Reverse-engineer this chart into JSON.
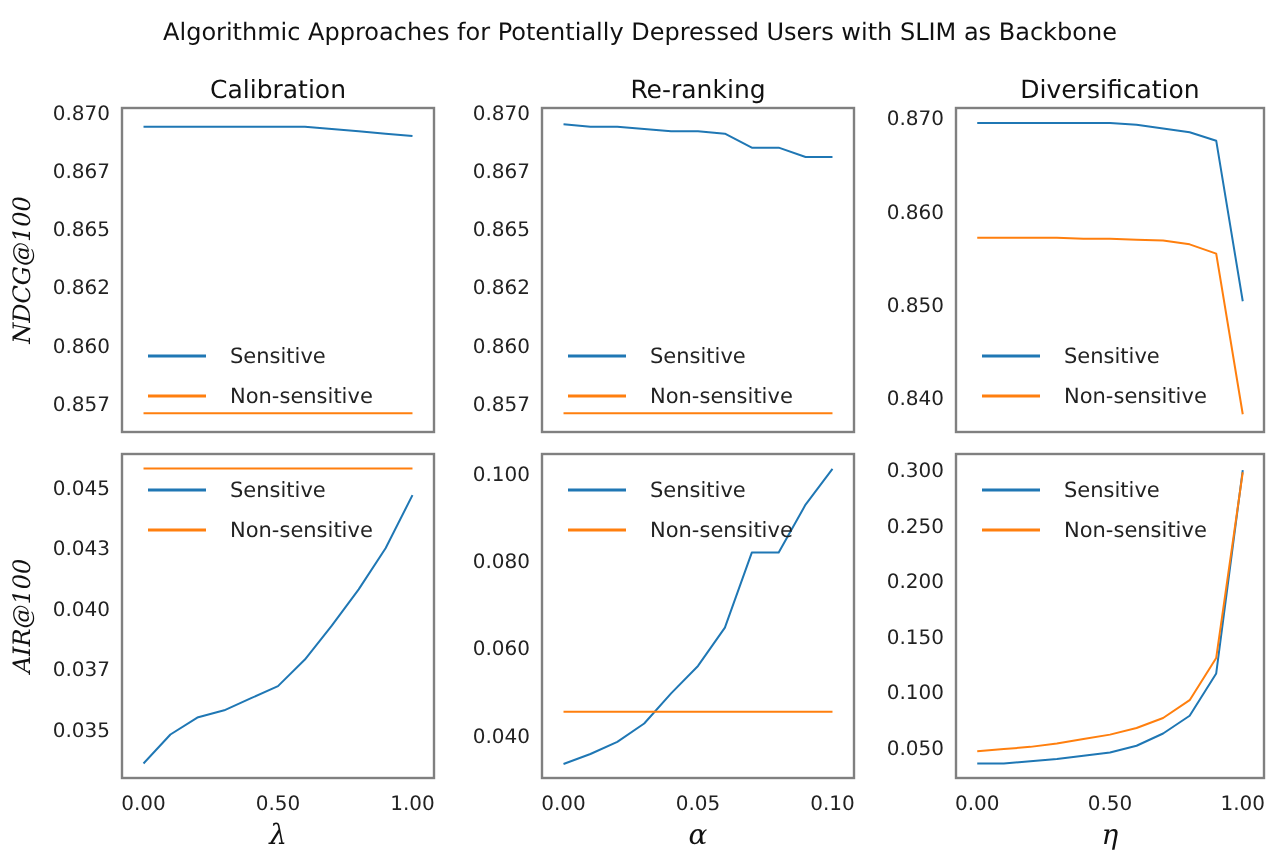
{
  "chart_data": [
    {
      "type": "line",
      "title": "Calibration",
      "ylabel": "NDCG@100",
      "annotations": [
        "Algorithmic Approaches for Potentially Depressed Users with SLIM as Backbone"
      ],
      "x": [
        0,
        0.1,
        0.2,
        0.3,
        0.4,
        0.5,
        0.6,
        0.7,
        0.8,
        0.9,
        1.0
      ],
      "xlim": [
        -0.08,
        1.08
      ],
      "ylim": [
        0.8563,
        0.8702
      ],
      "yticks": [
        {
          "value": 0.87,
          "label": "0.870"
        },
        {
          "value": 0.8675,
          "label": "0.867"
        },
        0.865,
        {
          "value": 0.8625,
          "label": "0.862"
        },
        {
          "value": 0.86,
          "label": "0.860"
        },
        {
          "value": 0.8575,
          "label": "0.857"
        }
      ],
      "tick_labels": "y",
      "legend": "bottom left",
      "series": [
        {
          "name": "Sensitive",
          "color": "#1f77b4",
          "values": [
            0.8694,
            0.8694,
            0.8694,
            0.8694,
            0.8694,
            0.8694,
            0.8694,
            0.8693,
            0.8692,
            0.8691,
            0.869
          ]
        },
        {
          "name": "Non-sensitive",
          "color": "#ff7f0e",
          "values": [
            0.8571,
            0.8571,
            0.8571,
            0.8571,
            0.8571,
            0.8571,
            0.8571,
            0.8571,
            0.8571,
            0.8571,
            0.8571
          ]
        }
      ]
    },
    {
      "type": "line",
      "title": "Re-ranking",
      "x": [
        0,
        0.01,
        0.02,
        0.03,
        0.04,
        0.05,
        0.06,
        0.07,
        0.08,
        0.09,
        0.1
      ],
      "xlim": [
        -0.008,
        0.108
      ],
      "ylim": [
        0.8563,
        0.8702
      ],
      "yticks": [
        {
          "value": 0.87,
          "label": "0.870"
        },
        {
          "value": 0.8675,
          "label": "0.867"
        },
        0.865,
        {
          "value": 0.8625,
          "label": "0.862"
        },
        {
          "value": 0.86,
          "label": "0.860"
        },
        {
          "value": 0.8575,
          "label": "0.857"
        }
      ],
      "tick_labels": "y",
      "legend": "bottom left",
      "series": [
        {
          "name": "Sensitive",
          "color": "#1f77b4",
          "values": [
            0.8695,
            0.8694,
            0.8694,
            0.8693,
            0.8692,
            0.8692,
            0.8691,
            0.8685,
            0.8685,
            0.8681,
            0.8681
          ]
        },
        {
          "name": "Non-sensitive",
          "color": "#ff7f0e",
          "values": [
            0.8571,
            0.8571,
            0.8571,
            0.8571,
            0.8571,
            0.8571,
            0.8571,
            0.8571,
            0.8571,
            0.8571,
            0.8571
          ]
        }
      ]
    },
    {
      "type": "line",
      "title": "Diversification",
      "x": [
        0,
        0.1,
        0.2,
        0.3,
        0.4,
        0.5,
        0.6,
        0.7,
        0.8,
        0.9,
        1.0
      ],
      "xlim": [
        -0.08,
        1.08
      ],
      "ylim": [
        0.8364,
        0.8711
      ],
      "yticks": [
        {
          "value": 0.87,
          "label": "0.870"
        },
        {
          "value": 0.86,
          "label": "0.860"
        },
        {
          "value": 0.85,
          "label": "0.850"
        },
        {
          "value": 0.84,
          "label": "0.840"
        }
      ],
      "tick_labels": "y",
      "legend": "bottom left",
      "series": [
        {
          "name": "Sensitive",
          "color": "#1f77b4",
          "values": [
            0.8695,
            0.8695,
            0.8695,
            0.8695,
            0.8695,
            0.8695,
            0.8693,
            0.8689,
            0.8685,
            0.8676,
            0.8504
          ]
        },
        {
          "name": "Non-sensitive",
          "color": "#ff7f0e",
          "values": [
            0.8572,
            0.8572,
            0.8572,
            0.8572,
            0.8571,
            0.8571,
            0.857,
            0.8569,
            0.8565,
            0.8555,
            0.8383
          ]
        }
      ]
    },
    {
      "type": "line",
      "xlabel": "λ",
      "ylabel": "AIR@100",
      "x": [
        0,
        0.1,
        0.2,
        0.3,
        0.4,
        0.5,
        0.6,
        0.7,
        0.8,
        0.9,
        1.0
      ],
      "xlim": [
        -0.08,
        1.08
      ],
      "ylim": [
        0.033,
        0.0464
      ],
      "yticks": [
        0.045,
        {
          "value": 0.0425,
          "label": "0.043"
        },
        {
          "value": 0.04,
          "label": "0.040"
        },
        {
          "value": 0.0375,
          "label": "0.037"
        },
        0.035
      ],
      "xticks": [
        {
          "value": 0,
          "label": "0.00"
        },
        {
          "value": 0.5,
          "label": "0.50"
        },
        {
          "value": 1,
          "label": "1.00"
        }
      ],
      "legend": "top left",
      "series": [
        {
          "name": "Sensitive",
          "color": "#1f77b4",
          "values": [
            0.0336,
            0.0348,
            0.0355,
            0.0358,
            0.0363,
            0.0368,
            0.0379,
            0.0393,
            0.0408,
            0.0425,
            0.0447
          ]
        },
        {
          "name": "Non-sensitive",
          "color": "#ff7f0e",
          "values": [
            0.0458,
            0.0458,
            0.0458,
            0.0458,
            0.0458,
            0.0458,
            0.0458,
            0.0458,
            0.0458,
            0.0458,
            0.0458
          ]
        }
      ]
    },
    {
      "type": "line",
      "xlabel": "α",
      "x": [
        0,
        0.01,
        0.02,
        0.03,
        0.04,
        0.05,
        0.06,
        0.07,
        0.08,
        0.09,
        0.1
      ],
      "xlim": [
        -0.008,
        0.108
      ],
      "ylim": [
        0.0303,
        0.1046
      ],
      "yticks": [
        {
          "value": 0.04,
          "label": "0.040"
        },
        {
          "value": 0.06,
          "label": "0.060"
        },
        {
          "value": 0.08,
          "label": "0.080"
        },
        {
          "value": 0.1,
          "label": "0.100"
        }
      ],
      "xticks": [
        {
          "value": 0,
          "label": "0.00"
        },
        0.05,
        {
          "value": 0.1,
          "label": "0.10"
        }
      ],
      "legend": "top left",
      "series": [
        {
          "name": "Sensitive",
          "color": "#1f77b4",
          "values": [
            0.0335,
            0.0358,
            0.0386,
            0.0428,
            0.0497,
            0.056,
            0.0648,
            0.082,
            0.082,
            0.093,
            0.1012
          ]
        },
        {
          "name": "Non-sensitive",
          "color": "#ff7f0e",
          "values": [
            0.0455,
            0.0455,
            0.0455,
            0.0455,
            0.0455,
            0.0455,
            0.0455,
            0.0455,
            0.0455,
            0.0455,
            0.0455
          ]
        }
      ]
    },
    {
      "type": "line",
      "xlabel": "η",
      "x": [
        0,
        0.1,
        0.2,
        0.3,
        0.4,
        0.5,
        0.6,
        0.7,
        0.8,
        0.9,
        1.0
      ],
      "xlim": [
        -0.08,
        1.08
      ],
      "ylim": [
        0.023,
        0.3144
      ],
      "yticks": [
        {
          "value": 0.05,
          "label": "0.050"
        },
        {
          "value": 0.1,
          "label": "0.100"
        },
        {
          "value": 0.15,
          "label": "0.150"
        },
        {
          "value": 0.2,
          "label": "0.200"
        },
        {
          "value": 0.25,
          "label": "0.250"
        },
        {
          "value": 0.3,
          "label": "0.300"
        }
      ],
      "xticks": [
        {
          "value": 0,
          "label": "0.00"
        },
        {
          "value": 0.5,
          "label": "0.50"
        },
        {
          "value": 1,
          "label": "1.00"
        }
      ],
      "legend": "top left",
      "series": [
        {
          "name": "Sensitive",
          "color": "#1f77b4",
          "values": [
            0.036,
            0.036,
            0.038,
            0.04,
            0.043,
            0.046,
            0.052,
            0.063,
            0.079,
            0.117,
            0.3
          ]
        },
        {
          "name": "Non-sensitive",
          "color": "#ff7f0e",
          "values": [
            0.047,
            0.049,
            0.051,
            0.054,
            0.058,
            0.062,
            0.068,
            0.077,
            0.093,
            0.131,
            0.298
          ]
        }
      ]
    }
  ]
}
